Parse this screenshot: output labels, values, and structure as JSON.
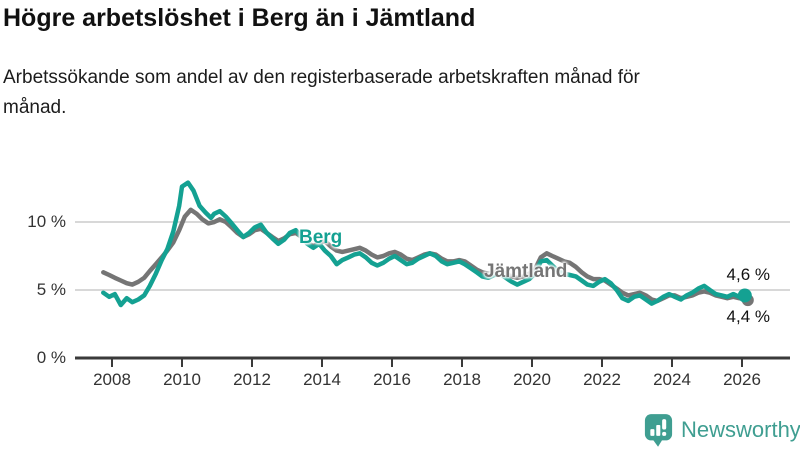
{
  "chart_data": {
    "type": "line",
    "title": "Högre arbetslöshet i Berg än i Jämtland",
    "subtitle": "Arbetssökande som andel av den registerbaserade arbetskraften månad för månad.",
    "unit": "%",
    "grid": "horizontal",
    "legend": "inline-labels",
    "xlim": [
      2007.7,
      2026.6
    ],
    "ylim": [
      0,
      13.5
    ],
    "x_ticks": [
      2008,
      2010,
      2012,
      2014,
      2016,
      2018,
      2020,
      2022,
      2024,
      2026
    ],
    "y_ticks": [
      {
        "value": 0,
        "label": "0 %"
      },
      {
        "value": 5,
        "label": "5 %"
      },
      {
        "value": 10,
        "label": "10 %"
      }
    ],
    "series": [
      {
        "name": "Berg",
        "color": "#14A192",
        "last_value": 4.6,
        "end_label": "4,6 %",
        "points": [
          [
            2007.75,
            4.8
          ],
          [
            2007.92,
            4.5
          ],
          [
            2008.08,
            4.7
          ],
          [
            2008.25,
            3.9
          ],
          [
            2008.42,
            4.4
          ],
          [
            2008.58,
            4.1
          ],
          [
            2008.75,
            4.3
          ],
          [
            2008.92,
            4.6
          ],
          [
            2009.08,
            5.3
          ],
          [
            2009.25,
            6.2
          ],
          [
            2009.42,
            7.2
          ],
          [
            2009.58,
            8.0
          ],
          [
            2009.75,
            9.3
          ],
          [
            2009.92,
            11.2
          ],
          [
            2010.0,
            12.6
          ],
          [
            2010.17,
            12.9
          ],
          [
            2010.33,
            12.3
          ],
          [
            2010.5,
            11.2
          ],
          [
            2010.67,
            10.7
          ],
          [
            2010.83,
            10.3
          ],
          [
            2010.92,
            10.6
          ],
          [
            2011.08,
            10.8
          ],
          [
            2011.25,
            10.4
          ],
          [
            2011.42,
            9.9
          ],
          [
            2011.58,
            9.4
          ],
          [
            2011.75,
            8.9
          ],
          [
            2011.92,
            9.2
          ],
          [
            2012.08,
            9.6
          ],
          [
            2012.25,
            9.8
          ],
          [
            2012.42,
            9.2
          ],
          [
            2012.58,
            8.8
          ],
          [
            2012.75,
            8.4
          ],
          [
            2012.92,
            8.7
          ],
          [
            2013.08,
            9.2
          ],
          [
            2013.25,
            9.4
          ],
          [
            2013.42,
            8.9
          ],
          [
            2013.58,
            8.4
          ],
          [
            2013.75,
            8.1
          ],
          [
            2013.92,
            8.4
          ],
          [
            2014.08,
            7.9
          ],
          [
            2014.25,
            7.5
          ],
          [
            2014.42,
            6.9
          ],
          [
            2014.58,
            7.2
          ],
          [
            2014.75,
            7.4
          ],
          [
            2014.92,
            7.6
          ],
          [
            2015.08,
            7.7
          ],
          [
            2015.25,
            7.4
          ],
          [
            2015.42,
            7.0
          ],
          [
            2015.58,
            6.8
          ],
          [
            2015.75,
            7.0
          ],
          [
            2015.92,
            7.3
          ],
          [
            2016.08,
            7.5
          ],
          [
            2016.25,
            7.2
          ],
          [
            2016.42,
            6.9
          ],
          [
            2016.58,
            7.0
          ],
          [
            2016.75,
            7.3
          ],
          [
            2016.92,
            7.5
          ],
          [
            2017.08,
            7.7
          ],
          [
            2017.25,
            7.5
          ],
          [
            2017.42,
            7.1
          ],
          [
            2017.58,
            6.9
          ],
          [
            2017.75,
            7.0
          ],
          [
            2017.92,
            7.1
          ],
          [
            2018.08,
            6.9
          ],
          [
            2018.25,
            6.6
          ],
          [
            2018.42,
            6.3
          ],
          [
            2018.58,
            6.0
          ],
          [
            2018.75,
            5.9
          ],
          [
            2018.92,
            6.1
          ],
          [
            2019.08,
            6.2
          ],
          [
            2019.25,
            5.9
          ],
          [
            2019.42,
            5.6
          ],
          [
            2019.58,
            5.4
          ],
          [
            2019.75,
            5.6
          ],
          [
            2019.92,
            5.8
          ],
          [
            2020.08,
            6.2
          ],
          [
            2020.25,
            7.1
          ],
          [
            2020.42,
            7.2
          ],
          [
            2020.58,
            6.8
          ],
          [
            2020.75,
            6.4
          ],
          [
            2020.92,
            6.2
          ],
          [
            2021.08,
            6.1
          ],
          [
            2021.25,
            6.0
          ],
          [
            2021.42,
            5.7
          ],
          [
            2021.58,
            5.4
          ],
          [
            2021.75,
            5.3
          ],
          [
            2021.92,
            5.6
          ],
          [
            2022.08,
            5.8
          ],
          [
            2022.25,
            5.5
          ],
          [
            2022.42,
            5.0
          ],
          [
            2022.58,
            4.4
          ],
          [
            2022.75,
            4.2
          ],
          [
            2022.92,
            4.5
          ],
          [
            2023.08,
            4.6
          ],
          [
            2023.25,
            4.3
          ],
          [
            2023.42,
            4.0
          ],
          [
            2023.58,
            4.2
          ],
          [
            2023.75,
            4.5
          ],
          [
            2023.92,
            4.7
          ],
          [
            2024.08,
            4.5
          ],
          [
            2024.25,
            4.3
          ],
          [
            2024.42,
            4.6
          ],
          [
            2024.58,
            4.8
          ],
          [
            2024.75,
            5.1
          ],
          [
            2024.92,
            5.3
          ],
          [
            2025.08,
            5.0
          ],
          [
            2025.25,
            4.7
          ],
          [
            2025.42,
            4.6
          ],
          [
            2025.58,
            4.5
          ],
          [
            2025.75,
            4.7
          ],
          [
            2025.92,
            4.5
          ],
          [
            2026.08,
            4.6
          ]
        ]
      },
      {
        "name": "Jämtland",
        "color": "#757575",
        "last_value": 4.4,
        "end_label": "4,4 %",
        "points": [
          [
            2007.75,
            6.3
          ],
          [
            2007.92,
            6.1
          ],
          [
            2008.08,
            5.9
          ],
          [
            2008.25,
            5.7
          ],
          [
            2008.42,
            5.5
          ],
          [
            2008.58,
            5.4
          ],
          [
            2008.75,
            5.6
          ],
          [
            2008.92,
            5.9
          ],
          [
            2009.08,
            6.4
          ],
          [
            2009.25,
            6.9
          ],
          [
            2009.42,
            7.4
          ],
          [
            2009.58,
            7.9
          ],
          [
            2009.75,
            8.5
          ],
          [
            2009.92,
            9.4
          ],
          [
            2010.08,
            10.4
          ],
          [
            2010.25,
            10.9
          ],
          [
            2010.42,
            10.6
          ],
          [
            2010.58,
            10.2
          ],
          [
            2010.75,
            9.9
          ],
          [
            2010.92,
            10.0
          ],
          [
            2011.08,
            10.2
          ],
          [
            2011.25,
            10.0
          ],
          [
            2011.42,
            9.6
          ],
          [
            2011.58,
            9.2
          ],
          [
            2011.75,
            8.9
          ],
          [
            2011.92,
            9.1
          ],
          [
            2012.08,
            9.4
          ],
          [
            2012.25,
            9.5
          ],
          [
            2012.42,
            9.2
          ],
          [
            2012.58,
            8.9
          ],
          [
            2012.75,
            8.6
          ],
          [
            2012.92,
            8.8
          ],
          [
            2013.08,
            9.1
          ],
          [
            2013.25,
            9.2
          ],
          [
            2013.42,
            8.9
          ],
          [
            2013.58,
            8.5
          ],
          [
            2013.75,
            8.2
          ],
          [
            2013.92,
            8.5
          ],
          [
            2014.08,
            8.6
          ],
          [
            2014.25,
            8.2
          ],
          [
            2014.42,
            7.9
          ],
          [
            2014.58,
            7.8
          ],
          [
            2014.75,
            7.9
          ],
          [
            2014.92,
            8.0
          ],
          [
            2015.08,
            8.1
          ],
          [
            2015.25,
            7.9
          ],
          [
            2015.42,
            7.6
          ],
          [
            2015.58,
            7.4
          ],
          [
            2015.75,
            7.5
          ],
          [
            2015.92,
            7.7
          ],
          [
            2016.08,
            7.8
          ],
          [
            2016.25,
            7.6
          ],
          [
            2016.42,
            7.3
          ],
          [
            2016.58,
            7.2
          ],
          [
            2016.75,
            7.4
          ],
          [
            2016.92,
            7.6
          ],
          [
            2017.08,
            7.7
          ],
          [
            2017.25,
            7.6
          ],
          [
            2017.42,
            7.3
          ],
          [
            2017.58,
            7.1
          ],
          [
            2017.75,
            7.1
          ],
          [
            2017.92,
            7.2
          ],
          [
            2018.08,
            7.1
          ],
          [
            2018.25,
            6.8
          ],
          [
            2018.42,
            6.5
          ],
          [
            2018.58,
            6.3
          ],
          [
            2018.75,
            6.2
          ],
          [
            2018.92,
            6.3
          ],
          [
            2019.08,
            6.4
          ],
          [
            2019.25,
            6.2
          ],
          [
            2019.42,
            6.0
          ],
          [
            2019.58,
            5.9
          ],
          [
            2019.75,
            6.0
          ],
          [
            2019.92,
            6.2
          ],
          [
            2020.08,
            6.5
          ],
          [
            2020.25,
            7.4
          ],
          [
            2020.42,
            7.7
          ],
          [
            2020.58,
            7.5
          ],
          [
            2020.75,
            7.3
          ],
          [
            2020.92,
            7.1
          ],
          [
            2021.08,
            7.0
          ],
          [
            2021.25,
            6.7
          ],
          [
            2021.42,
            6.3
          ],
          [
            2021.58,
            6.0
          ],
          [
            2021.75,
            5.8
          ],
          [
            2021.92,
            5.8
          ],
          [
            2022.08,
            5.7
          ],
          [
            2022.25,
            5.4
          ],
          [
            2022.42,
            5.1
          ],
          [
            2022.58,
            4.8
          ],
          [
            2022.75,
            4.6
          ],
          [
            2022.92,
            4.7
          ],
          [
            2023.08,
            4.8
          ],
          [
            2023.25,
            4.6
          ],
          [
            2023.42,
            4.3
          ],
          [
            2023.58,
            4.2
          ],
          [
            2023.75,
            4.4
          ],
          [
            2023.92,
            4.6
          ],
          [
            2024.08,
            4.6
          ],
          [
            2024.25,
            4.4
          ],
          [
            2024.42,
            4.5
          ],
          [
            2024.58,
            4.6
          ],
          [
            2024.75,
            4.8
          ],
          [
            2024.92,
            4.9
          ],
          [
            2025.08,
            4.8
          ],
          [
            2025.25,
            4.6
          ],
          [
            2025.42,
            4.5
          ],
          [
            2025.58,
            4.4
          ],
          [
            2025.75,
            4.5
          ],
          [
            2025.92,
            4.4
          ],
          [
            2026.08,
            4.4
          ]
        ]
      }
    ]
  },
  "logo": {
    "text": "Newsworthy",
    "brand_color": "#3F9E91"
  },
  "colors": {
    "background": "#FFFFFF",
    "berg_line": "#14A192",
    "jamtland_line": "#757575",
    "gridline": "#D8D8D8",
    "axis": "#3A3A3A",
    "title_text": "#111111",
    "tick_label": "#333333"
  }
}
